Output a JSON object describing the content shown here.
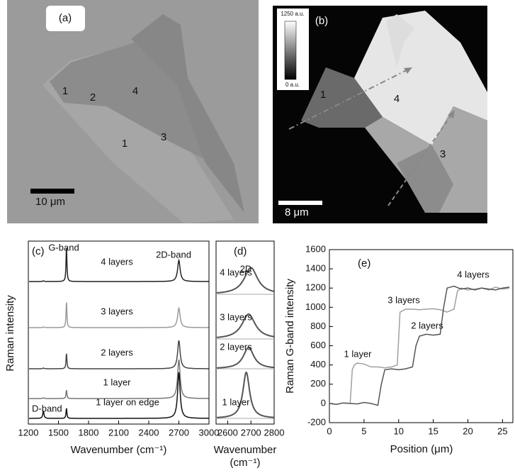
{
  "images": [
    {
      "label": "(a)",
      "regions": [
        "1",
        "2",
        "4",
        "1",
        "3"
      ],
      "scale_bar": "10 μm"
    },
    {
      "label": "(b)",
      "regions": [
        "1",
        "4",
        "3"
      ],
      "scale_bar": "8 μm",
      "colorbar_max": "1250 a.u.",
      "colorbar_min": "0 a.u."
    }
  ],
  "chart_data": [
    {
      "type": "spectra",
      "panel": "(c)",
      "xlabel": "Wavenumber (cm⁻¹)",
      "ylabel": "Raman intensity",
      "xlim": [
        1200,
        3000
      ],
      "xticks": [
        1200,
        1500,
        1800,
        2100,
        2400,
        2700,
        3000
      ],
      "peaks": [
        1350,
        1580,
        2700
      ],
      "peak_names": [
        "D-band",
        "G-band",
        "2D-band"
      ],
      "peak_widths": [
        15,
        10,
        30
      ],
      "series": [
        {
          "name": "4 layers",
          "color": "#222222",
          "values": [
            0.02,
            1.0,
            0.6
          ]
        },
        {
          "name": "3 layers",
          "color": "#9a9a9a",
          "values": [
            0.02,
            0.75,
            0.55
          ]
        },
        {
          "name": "2 layers",
          "color": "#444444",
          "values": [
            0.02,
            0.45,
            0.8
          ]
        },
        {
          "name": "1 layer",
          "color": "#777777",
          "values": [
            0.02,
            0.25,
            1.1
          ]
        },
        {
          "name": "1 layer on edge",
          "color": "#111111",
          "values": [
            0.2,
            0.3,
            1.3
          ]
        }
      ]
    },
    {
      "type": "fit",
      "panel": "(d)",
      "peak_name": "2D",
      "xlabel": "Wavenumber",
      "xunit": "(cm⁻¹)",
      "xlim": [
        2550,
        2800
      ],
      "xticks": [
        2600,
        2700,
        2800
      ],
      "series": [
        {
          "name": "4 layers",
          "color": "#555555",
          "center": 2700,
          "width": 70,
          "height": 0.75
        },
        {
          "name": "3 layers",
          "color": "#555555",
          "center": 2690,
          "width": 70,
          "height": 0.7
        },
        {
          "name": "2 layers",
          "color": "#555555",
          "center": 2690,
          "width": 55,
          "height": 0.6
        },
        {
          "name": "1 layer",
          "color": "#555555",
          "center": 2680,
          "width": 35,
          "height": 1.3
        }
      ]
    },
    {
      "type": "line",
      "panel": "(e)",
      "xlabel": "Position (μm)",
      "ylabel": "Raman G-band intensity",
      "xlim": [
        0,
        26.6
      ],
      "xticks": [
        0,
        5,
        10,
        15,
        20,
        25
      ],
      "ylim": [
        -200,
        1600
      ],
      "yticks": [
        -200,
        0,
        200,
        400,
        600,
        800,
        1000,
        1200,
        1400,
        1600
      ],
      "annotations": [
        "4 layers",
        "3 layers",
        "2 layers",
        "1 layer"
      ],
      "series": [
        {
          "color": "#a0a0a0",
          "x": [
            0,
            1,
            2,
            3,
            3.3,
            3.6,
            4,
            5,
            6,
            7,
            8,
            9,
            9.8,
            10.2,
            11,
            12,
            13,
            14,
            15,
            16,
            17,
            18,
            18.5,
            19,
            20,
            21,
            22,
            23,
            24,
            25,
            26
          ],
          "values": [
            0,
            -10,
            5,
            0,
            350,
            400,
            420,
            410,
            380,
            380,
            370,
            380,
            400,
            950,
            980,
            980,
            975,
            980,
            985,
            975,
            950,
            980,
            1170,
            1200,
            1180,
            1190,
            1200,
            1180,
            1210,
            1190,
            1200
          ]
        },
        {
          "color": "#555555",
          "x": [
            0,
            1,
            2,
            3,
            4,
            5,
            6,
            7,
            7.5,
            8,
            9,
            10,
            11,
            12,
            12.5,
            13,
            14,
            15,
            16,
            16.5,
            17,
            18,
            19,
            20,
            21,
            22,
            23,
            24,
            25,
            26
          ],
          "values": [
            0,
            -10,
            5,
            0,
            -5,
            10,
            0,
            -20,
            200,
            350,
            360,
            350,
            360,
            380,
            600,
            700,
            720,
            710,
            720,
            1000,
            1200,
            1220,
            1190,
            1200,
            1180,
            1200,
            1190,
            1180,
            1200,
            1210
          ]
        }
      ]
    }
  ]
}
